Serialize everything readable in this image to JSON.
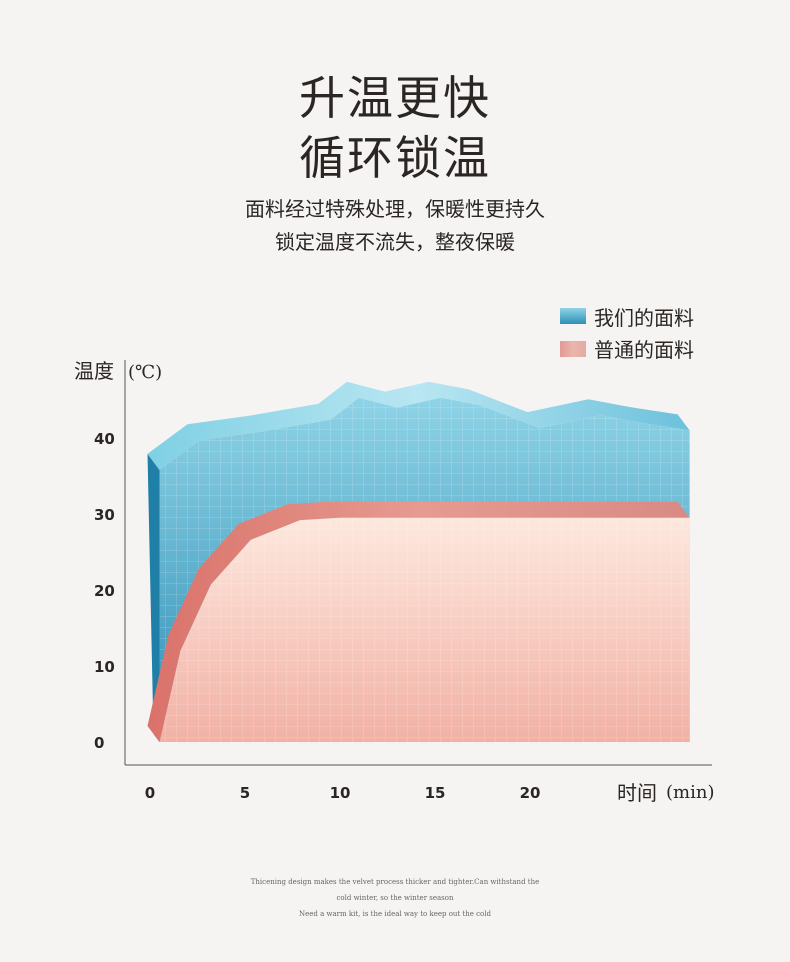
{
  "header": {
    "title_line1": "升温更快",
    "title_line2": "循环锁温",
    "subtitle_line1": "面料经过特殊处理，保暖性更持久",
    "subtitle_line2": "锁定温度不流失，整夜保暖"
  },
  "footer": {
    "line1": "Thicening design makes the velvet process thicker and tighter.Can withstand the",
    "line2": "cold winter, so the winter season",
    "line3": "Need a warm kit, is the ideal way to keep out the cold"
  },
  "chart_data": {
    "type": "area",
    "ylabel": "温度",
    "yunit": "(℃)",
    "xlabel": "时间",
    "xunit": "(min)",
    "xlim": [
      0,
      28.5
    ],
    "ylim": [
      0,
      45
    ],
    "x_ticks": [
      0,
      5,
      10,
      15,
      20
    ],
    "y_ticks": [
      0,
      10,
      20,
      30,
      40
    ],
    "x_tick_labels": [
      "0",
      "5",
      "10",
      "15",
      "20"
    ],
    "y_tick_labels": [
      "0",
      "10",
      "20",
      "30",
      "40"
    ],
    "grid": true,
    "legend_position": "top-right",
    "series": [
      {
        "name": "我们的面料",
        "color": "#5fb8d6",
        "points": [
          [
            0.5,
            35.8
          ],
          [
            2.6,
            39.7
          ],
          [
            5.8,
            40.8
          ],
          [
            9.5,
            42.4
          ],
          [
            11,
            45.3
          ],
          [
            13,
            44
          ],
          [
            15.3,
            45.3
          ],
          [
            17.4,
            44.3
          ],
          [
            20.5,
            41.3
          ],
          [
            23.7,
            43
          ],
          [
            25.8,
            42
          ],
          [
            28.4,
            41
          ]
        ]
      },
      {
        "name": "普通的面料",
        "color": "#f0b3a3",
        "points": [
          [
            0.5,
            0
          ],
          [
            1.6,
            12
          ],
          [
            3.2,
            20.7
          ],
          [
            5.3,
            26.6
          ],
          [
            7.9,
            29.2
          ],
          [
            10,
            29.5
          ],
          [
            28.4,
            29.5
          ]
        ]
      }
    ]
  }
}
